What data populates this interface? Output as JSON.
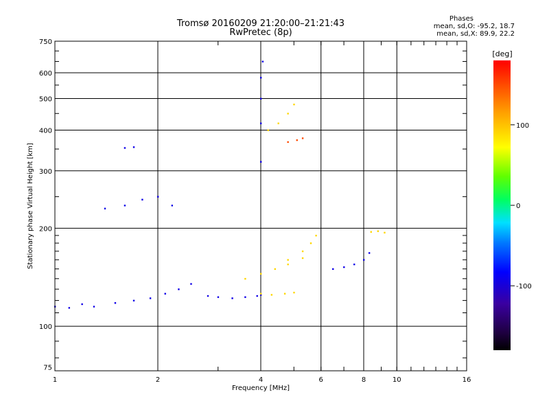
{
  "title": "Tromsø 20160209 21:20:00–21:21:43",
  "subtitle": "RwPretec (8p)",
  "phase_box": {
    "heading": "Phases",
    "line_o": "mean, sd,O: -95.2, 18.7",
    "line_x": "mean, sd,X: 89.9, 22.2"
  },
  "colorbar": {
    "unit": "[deg]",
    "ticks": [
      {
        "value": 100,
        "label": "100"
      },
      {
        "value": 0,
        "label": "0"
      },
      {
        "value": -100,
        "label": "-100"
      }
    ],
    "range": [
      -180,
      180
    ]
  },
  "chart_data": {
    "type": "scatter",
    "title": "Tromsø 20160209 21:20:00–21:21:43",
    "subtitle": "RwPretec (8p)",
    "xlabel": "Frequency [MHz]",
    "ylabel": "Stationary phase Virtual Height [km]",
    "xscale": "log",
    "yscale": "log",
    "xlim": [
      1,
      16
    ],
    "ylim": [
      73,
      750
    ],
    "grid": true,
    "xticks": [
      {
        "value": 1,
        "label": "1"
      },
      {
        "value": 2,
        "label": "2"
      },
      {
        "value": 4,
        "label": "4"
      },
      {
        "value": 6,
        "label": "6"
      },
      {
        "value": 8,
        "label": "8"
      },
      {
        "value": 10,
        "label": "10"
      },
      {
        "value": 16,
        "label": "16"
      }
    ],
    "yticks": [
      {
        "value": 75,
        "label": "75"
      },
      {
        "value": 100,
        "label": "100"
      },
      {
        "value": 200,
        "label": "200"
      },
      {
        "value": 300,
        "label": "300"
      },
      {
        "value": 400,
        "label": "400"
      },
      {
        "value": 500,
        "label": "500"
      },
      {
        "value": 600,
        "label": "600"
      },
      {
        "value": 750,
        "label": "750"
      }
    ],
    "color_encoding": "phase [deg]",
    "series": [
      {
        "traces": [
          {
            "values": [
              [
                1.0,
                115,
                -95
              ],
              [
                1.1,
                114,
                -95
              ],
              [
                1.2,
                117,
                -95
              ],
              [
                1.3,
                115,
                -95
              ],
              [
                1.5,
                118,
                -95
              ],
              [
                1.7,
                120,
                -95
              ],
              [
                1.9,
                122,
                -95
              ],
              [
                2.1,
                126,
                -95
              ],
              [
                2.3,
                130,
                -95
              ],
              [
                2.5,
                135,
                -95
              ]
            ]
          },
          {
            "values": [
              [
                1.4,
                230,
                -95
              ],
              [
                1.6,
                235,
                -95
              ],
              [
                1.8,
                245,
                -95
              ],
              [
                2.0,
                250,
                -95
              ],
              [
                2.2,
                235,
                -95
              ]
            ]
          },
          {
            "values": [
              [
                2.8,
                124,
                -95
              ],
              [
                3.0,
                123,
                -95
              ],
              [
                3.3,
                122,
                -95
              ],
              [
                3.6,
                123,
                -95
              ],
              [
                3.9,
                124,
                -95
              ],
              [
                4.0,
                125,
                -95
              ]
            ]
          },
          {
            "values": [
              [
                6.5,
                150,
                -95
              ],
              [
                7.0,
                152,
                -95
              ],
              [
                7.5,
                155,
                -95
              ],
              [
                8.0,
                160,
                -95
              ],
              [
                8.3,
                168,
                -95
              ]
            ]
          },
          {
            "values": [
              [
                4.0,
                320,
                -95
              ],
              [
                4.0,
                420,
                -95
              ],
              [
                4.0,
                500,
                -95
              ],
              [
                4.0,
                580,
                -95
              ],
              [
                4.05,
                650,
                -95
              ]
            ]
          },
          {
            "values": [
              [
                1.6,
                353,
                -95
              ],
              [
                1.7,
                355,
                -95
              ]
            ]
          }
        ]
      },
      {
        "traces": [
          {
            "values": [
              [
                3.6,
                140,
                90
              ],
              [
                4.0,
                145,
                90
              ],
              [
                4.4,
                150,
                90
              ],
              [
                4.8,
                155,
                90
              ],
              [
                5.3,
                162,
                90
              ]
            ]
          },
          {
            "values": [
              [
                4.0,
                126,
                90
              ],
              [
                4.3,
                125,
                90
              ],
              [
                4.7,
                126,
                90
              ],
              [
                5.0,
                127,
                90
              ]
            ]
          },
          {
            "values": [
              [
                4.8,
                160,
                90
              ],
              [
                5.3,
                170,
                90
              ],
              [
                5.6,
                180,
                90
              ],
              [
                5.8,
                190,
                90
              ]
            ]
          },
          {
            "values": [
              [
                4.2,
                400,
                90
              ],
              [
                4.5,
                420,
                90
              ],
              [
                4.8,
                450,
                90
              ],
              [
                5.0,
                480,
                90
              ]
            ]
          },
          {
            "values": [
              [
                4.8,
                368,
                150
              ],
              [
                5.1,
                373,
                150
              ],
              [
                5.3,
                378,
                150
              ]
            ]
          },
          {
            "values": [
              [
                8.4,
                195,
                90
              ],
              [
                8.8,
                196,
                90
              ],
              [
                9.2,
                194,
                90
              ]
            ]
          }
        ]
      }
    ]
  }
}
